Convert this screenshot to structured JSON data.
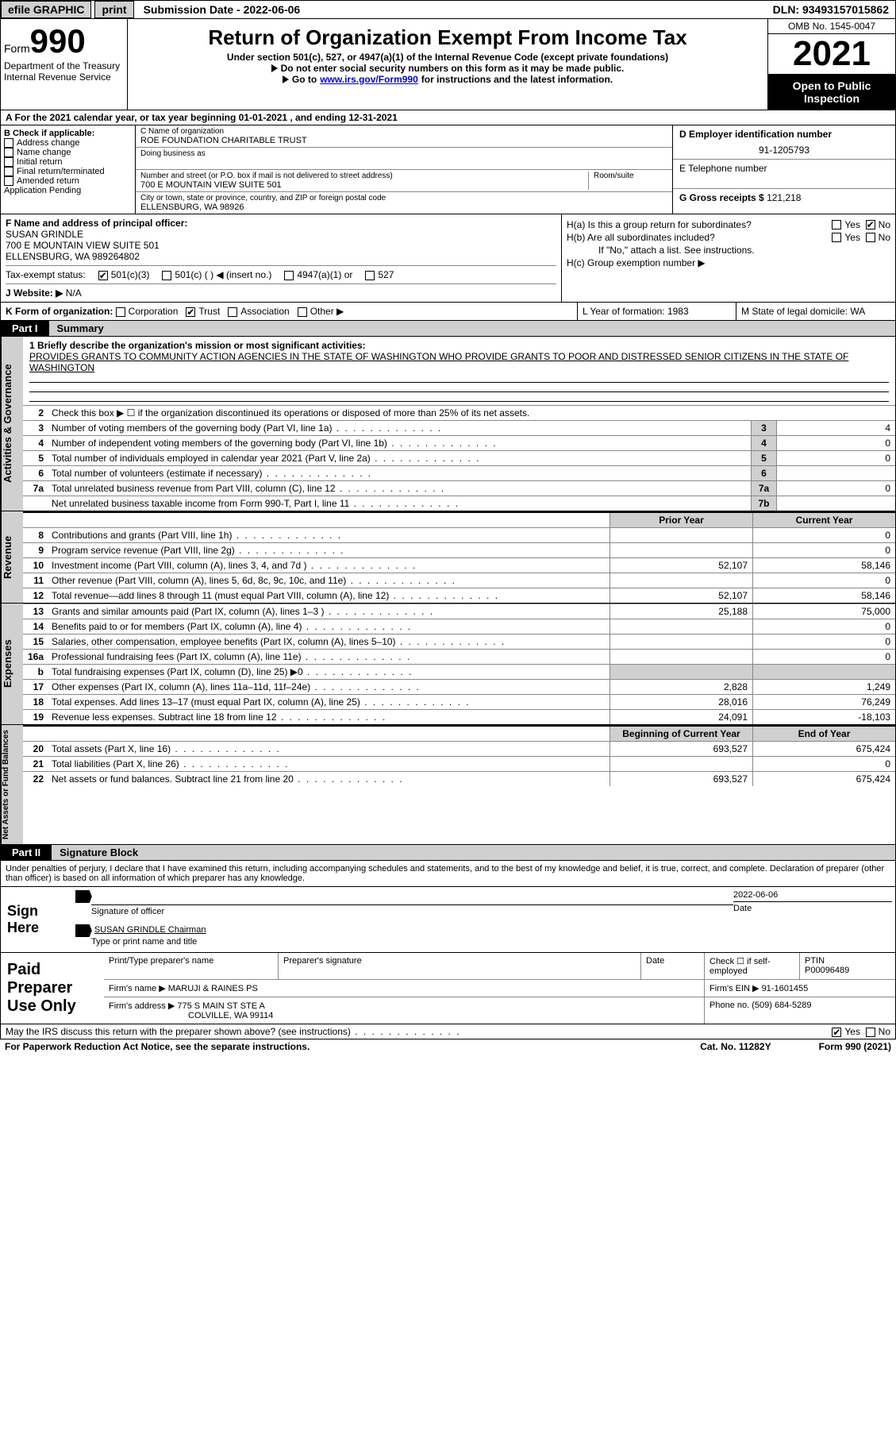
{
  "topbar": {
    "efile": "efile GRAPHIC",
    "print": "print",
    "submission": "Submission Date - 2022-06-06",
    "dln": "DLN: 93493157015862"
  },
  "header": {
    "form_word": "Form",
    "form_num": "990",
    "dept": "Department of the Treasury",
    "irs_line": "Internal Revenue Service",
    "title": "Return of Organization Exempt From Income Tax",
    "sub1": "Under section 501(c), 527, or 4947(a)(1) of the Internal Revenue Code (except private foundations)",
    "sub2": "Do not enter social security numbers on this form as it may be made public.",
    "sub3_a": "Go to ",
    "sub3_link": "www.irs.gov/Form990",
    "sub3_b": " for instructions and the latest information.",
    "omb": "OMB No. 1545-0047",
    "year": "2021",
    "open": "Open to Public Inspection"
  },
  "rowA": "A For the 2021 calendar year, or tax year beginning 01-01-2021   , and ending 12-31-2021",
  "colB": {
    "label": "B Check if applicable:",
    "items": [
      "Address change",
      "Name change",
      "Initial return",
      "Final return/terminated",
      "Amended return",
      "Application Pending"
    ]
  },
  "colC": {
    "name_label": "C Name of organization",
    "name": "ROE FOUNDATION CHARITABLE TRUST",
    "dba_label": "Doing business as",
    "addr_label": "Number and street (or P.O. box if mail is not delivered to street address)",
    "room_label": "Room/suite",
    "addr": "700 E MOUNTAIN VIEW SUITE 501",
    "city_label": "City or town, state or province, country, and ZIP or foreign postal code",
    "city": "ELLENSBURG, WA  98926"
  },
  "colD": {
    "ein_label": "D Employer identification number",
    "ein": "91-1205793",
    "tel_label": "E Telephone number",
    "gross_label": "G Gross receipts $",
    "gross": "121,218"
  },
  "colF": {
    "label": "F  Name and address of principal officer:",
    "name": "SUSAN GRINDLE",
    "addr1": "700 E MOUNTAIN VIEW SUITE 501",
    "addr2": "ELLENSBURG, WA  989264802",
    "tax_label": "Tax-exempt status:",
    "t501c3": "501(c)(3)",
    "t501c": "501(c) (  ) ◀ (insert no.)",
    "t4947": "4947(a)(1) or",
    "t527": "527",
    "website_label": "J   Website: ▶",
    "website": "N/A"
  },
  "colH": {
    "ha_label": "H(a)  Is this a group return for subordinates?",
    "hb_label": "H(b)  Are all subordinates included?",
    "hb_note": "If \"No,\" attach a list. See instructions.",
    "hc_label": "H(c)  Group exemption number ▶",
    "yes": "Yes",
    "no": "No"
  },
  "rowK": {
    "k_label": "K Form of organization:",
    "corp": "Corporation",
    "trust": "Trust",
    "assoc": "Association",
    "other": "Other ▶",
    "l_label": "L Year of formation: 1983",
    "m_label": "M State of legal domicile: WA"
  },
  "partI": {
    "tag": "Part I",
    "title": "Summary"
  },
  "summary": {
    "line1_label": "1  Briefly describe the organization's mission or most significant activities:",
    "mission": "PROVIDES GRANTS TO COMMUNITY ACTION AGENCIES IN THE STATE OF WASHINGTON WHO PROVIDE GRANTS TO POOR AND DISTRESSED SENIOR CITIZENS IN THE STATE OF WASHINGTON",
    "line2": "Check this box ▶ ☐  if the organization discontinued its operations or disposed of more than 25% of its net assets.",
    "l3": {
      "n": "3",
      "d": "Number of voting members of the governing body (Part VI, line 1a)",
      "v": "4"
    },
    "l4": {
      "n": "4",
      "d": "Number of independent voting members of the governing body (Part VI, line 1b)",
      "v": "0"
    },
    "l5": {
      "n": "5",
      "d": "Total number of individuals employed in calendar year 2021 (Part V, line 2a)",
      "v": "0"
    },
    "l6": {
      "n": "6",
      "d": "Total number of volunteers (estimate if necessary)",
      "v": ""
    },
    "l7a": {
      "n": "7a",
      "d": "Total unrelated business revenue from Part VIII, column (C), line 12",
      "v": "0"
    },
    "l7b": {
      "n": "",
      "d": "Net unrelated business taxable income from Form 990-T, Part I, line 11",
      "bn": "7b",
      "v": ""
    }
  },
  "cols": {
    "prior": "Prior Year",
    "current": "Current Year",
    "begin": "Beginning of Current Year",
    "end": "End of Year"
  },
  "revenue": [
    {
      "n": "8",
      "d": "Contributions and grants (Part VIII, line 1h)",
      "p": "",
      "c": "0"
    },
    {
      "n": "9",
      "d": "Program service revenue (Part VIII, line 2g)",
      "p": "",
      "c": "0"
    },
    {
      "n": "10",
      "d": "Investment income (Part VIII, column (A), lines 3, 4, and 7d )",
      "p": "52,107",
      "c": "58,146"
    },
    {
      "n": "11",
      "d": "Other revenue (Part VIII, column (A), lines 5, 6d, 8c, 9c, 10c, and 11e)",
      "p": "",
      "c": "0"
    },
    {
      "n": "12",
      "d": "Total revenue—add lines 8 through 11 (must equal Part VIII, column (A), line 12)",
      "p": "52,107",
      "c": "58,146"
    }
  ],
  "expenses": [
    {
      "n": "13",
      "d": "Grants and similar amounts paid (Part IX, column (A), lines 1–3 )",
      "p": "25,188",
      "c": "75,000"
    },
    {
      "n": "14",
      "d": "Benefits paid to or for members (Part IX, column (A), line 4)",
      "p": "",
      "c": "0"
    },
    {
      "n": "15",
      "d": "Salaries, other compensation, employee benefits (Part IX, column (A), lines 5–10)",
      "p": "",
      "c": "0"
    },
    {
      "n": "16a",
      "d": "Professional fundraising fees (Part IX, column (A), line 11e)",
      "p": "",
      "c": "0"
    },
    {
      "n": "b",
      "d": "Total fundraising expenses (Part IX, column (D), line 25) ▶0",
      "p": "shade",
      "c": "shade"
    },
    {
      "n": "17",
      "d": "Other expenses (Part IX, column (A), lines 11a–11d, 11f–24e)",
      "p": "2,828",
      "c": "1,249"
    },
    {
      "n": "18",
      "d": "Total expenses. Add lines 13–17 (must equal Part IX, column (A), line 25)",
      "p": "28,016",
      "c": "76,249"
    },
    {
      "n": "19",
      "d": "Revenue less expenses. Subtract line 18 from line 12",
      "p": "24,091",
      "c": "-18,103"
    }
  ],
  "netassets": [
    {
      "n": "20",
      "d": "Total assets (Part X, line 16)",
      "p": "693,527",
      "c": "675,424"
    },
    {
      "n": "21",
      "d": "Total liabilities (Part X, line 26)",
      "p": "",
      "c": "0"
    },
    {
      "n": "22",
      "d": "Net assets or fund balances. Subtract line 21 from line 20",
      "p": "693,527",
      "c": "675,424"
    }
  ],
  "vtabs": {
    "act": "Activities & Governance",
    "rev": "Revenue",
    "exp": "Expenses",
    "net": "Net Assets or Fund Balances"
  },
  "partII": {
    "tag": "Part II",
    "title": "Signature Block"
  },
  "penalty": "Under penalties of perjury, I declare that I have examined this return, including accompanying schedules and statements, and to the best of my knowledge and belief, it is true, correct, and complete. Declaration of preparer (other than officer) is based on all information of which preparer has any knowledge.",
  "sign": {
    "label": "Sign Here",
    "sig_label": "Signature of officer",
    "date": "2022-06-06",
    "date_label": "Date",
    "name": "SUSAN GRINDLE  Chairman",
    "name_label": "Type or print name and title"
  },
  "preparer": {
    "label": "Paid Preparer Use Only",
    "h_name": "Print/Type preparer's name",
    "h_sig": "Preparer's signature",
    "h_date": "Date",
    "h_self": "Check ☐ if self-employed",
    "h_ptin": "PTIN",
    "ptin": "P00096489",
    "firm_name_label": "Firm's name    ▶",
    "firm_name": "MARUJI & RAINES PS",
    "firm_ein_label": "Firm's EIN ▶",
    "firm_ein": "91-1601455",
    "firm_addr_label": "Firm's address ▶",
    "firm_addr": "775 S MAIN ST STE A",
    "firm_city": "COLVILLE, WA  99114",
    "phone_label": "Phone no.",
    "phone": "(509) 684-5289"
  },
  "discuss": {
    "q": "May the IRS discuss this return with the preparer shown above? (see instructions)",
    "yes": "Yes",
    "no": "No"
  },
  "footer": {
    "paperwork": "For Paperwork Reduction Act Notice, see the separate instructions.",
    "cat": "Cat. No. 11282Y",
    "form": "Form 990 (2021)"
  }
}
